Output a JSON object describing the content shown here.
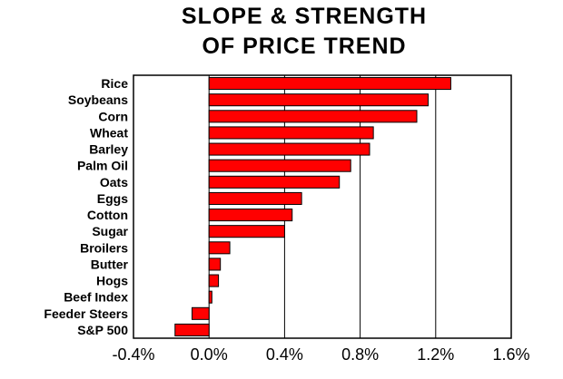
{
  "chart_data": {
    "type": "bar",
    "orientation": "horizontal",
    "title_lines": [
      "SLOPE & STRENGTH",
      "OF PRICE TREND"
    ],
    "categories": [
      "Rice",
      "Soybeans",
      "Corn",
      "Wheat",
      "Barley",
      "Palm Oil",
      "Oats",
      "Eggs",
      "Cotton",
      "Sugar",
      "Broilers",
      "Butter",
      "Hogs",
      "Beef Index",
      "Feeder Steers",
      "S&P 500"
    ],
    "values": [
      1.28,
      1.16,
      1.1,
      0.87,
      0.85,
      0.75,
      0.69,
      0.49,
      0.44,
      0.4,
      0.11,
      0.06,
      0.05,
      0.015,
      -0.09,
      -0.18
    ],
    "unit": "%",
    "xlim": [
      -0.4,
      1.6
    ],
    "xticks": [
      -0.4,
      0.0,
      0.4,
      0.8,
      1.2,
      1.6
    ],
    "xtick_labels": [
      "-0.4%",
      "0.0%",
      "0.4%",
      "0.8%",
      "1.2%",
      "1.6%"
    ],
    "grid": "vertical",
    "bar_color": "#ff0000",
    "bar_edge_color": "#000000",
    "xlabel": "",
    "ylabel": ""
  }
}
